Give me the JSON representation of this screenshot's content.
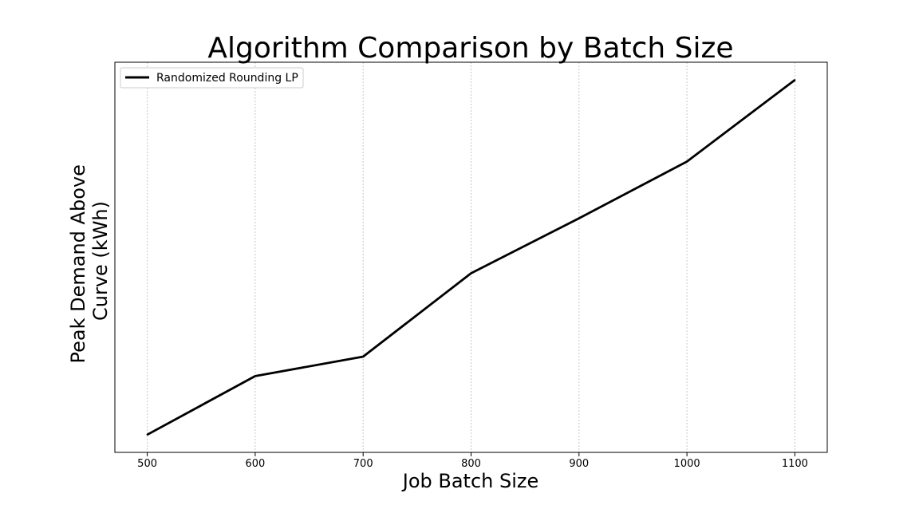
{
  "chart_data": {
    "type": "line",
    "title": "Algorithm Comparison by Batch Size",
    "xlabel": "Job Batch Size",
    "ylabel_lines": [
      "Peak Demand Above",
      "Curve (kWh)"
    ],
    "x": [
      500,
      600,
      700,
      800,
      900,
      1000,
      1100
    ],
    "x_ticks": [
      "500",
      "600",
      "700",
      "800",
      "900",
      "1000",
      "1100"
    ],
    "xlim": [
      470,
      1130
    ],
    "ylim": [
      -0.05,
      1.05
    ],
    "y_ticks_shown": false,
    "grid": "vertical-dashed",
    "legend_position": "upper-left",
    "series": [
      {
        "name": "Randomized Rounding LP",
        "color": "#000000",
        "values": [
          0.0,
          0.165,
          0.22,
          0.455,
          0.61,
          0.77,
          1.0
        ]
      }
    ]
  }
}
